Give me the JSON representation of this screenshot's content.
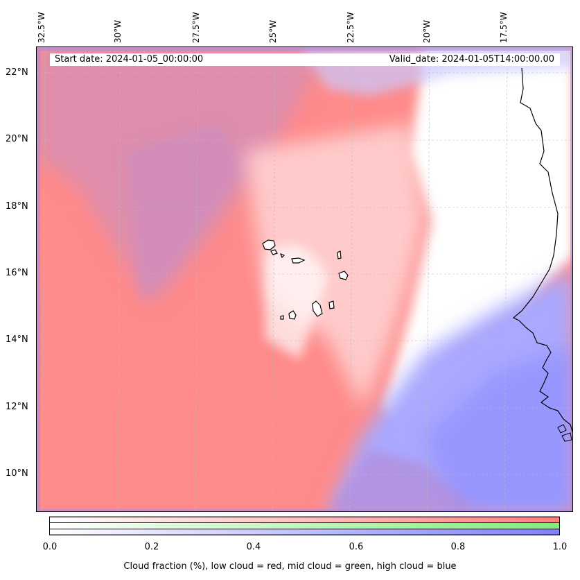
{
  "map": {
    "longitude_labels": [
      "32.5°W",
      "30°W",
      "27.5°W",
      "25°W",
      "22.5°W",
      "20°W",
      "17.5°W"
    ],
    "latitude_labels": [
      "22°N",
      "20°N",
      "18°N",
      "16°N",
      "14°N",
      "12°N",
      "10°N"
    ],
    "start_date": "Start date: 2024-01-05_00:00:00",
    "valid_date": "Valid_date: 2024-01-05T14:00:00.00"
  },
  "colorbar": {
    "ticks": [
      "0.0",
      "0.2",
      "0.4",
      "0.6",
      "0.8",
      "1.0"
    ],
    "label": "Cloud fraction (%), low cloud = red, mid cloud = green, high cloud = blue",
    "colors": {
      "low": "#ff7f7f",
      "mid": "#7fec7f",
      "high": "#7f7fff"
    }
  }
}
